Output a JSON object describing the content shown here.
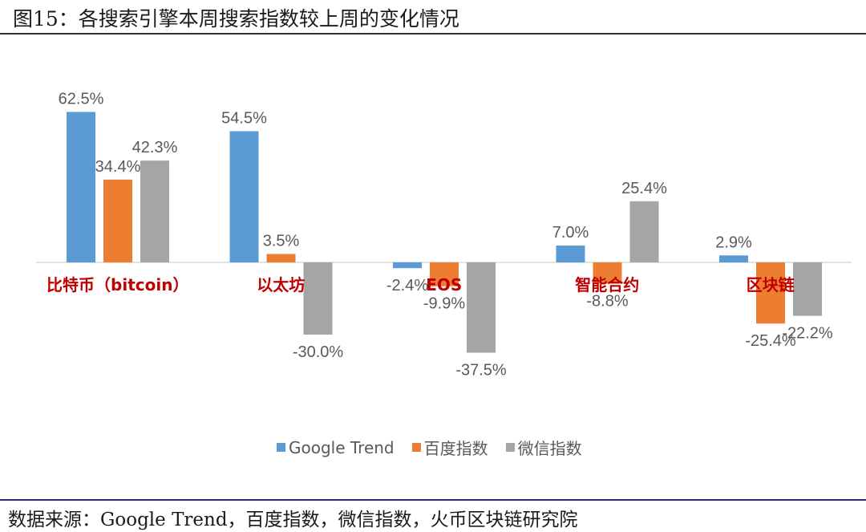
{
  "header": {
    "title": "图15：各搜索引擎本周搜索指数较上周的变化情况"
  },
  "footer": {
    "source": "数据来源：Google Trend，百度指数，微信指数，火币区块链研究院"
  },
  "colors": {
    "google": "#5b9bd5",
    "baidu": "#ed7d31",
    "weixin": "#a5a5a5",
    "category_label": "#c00000"
  },
  "chart_data": {
    "type": "bar",
    "categories": [
      "比特币（bitcoin）",
      "以太坊",
      "EOS",
      "智能合约",
      "区块链"
    ],
    "series": [
      {
        "name": "Google Trend",
        "values": [
          62.5,
          54.5,
          -2.4,
          7.0,
          2.9
        ],
        "labels": [
          "62.5%",
          "54.5%",
          "-2.4%",
          "7.0%",
          "2.9%"
        ]
      },
      {
        "name": "百度指数",
        "values": [
          34.4,
          3.5,
          -9.9,
          -8.8,
          -25.4
        ],
        "labels": [
          "34.4%",
          "3.5%",
          "-9.9%",
          "-8.8%",
          "-25.4%"
        ]
      },
      {
        "name": "微信指数",
        "values": [
          42.3,
          -30.0,
          -37.5,
          25.4,
          -22.2
        ],
        "labels": [
          "42.3%",
          "-30.0%",
          "-37.5%",
          "25.4%",
          "-22.2%"
        ]
      }
    ],
    "unit": "%",
    "legend": "bottom-center",
    "grid": false
  }
}
